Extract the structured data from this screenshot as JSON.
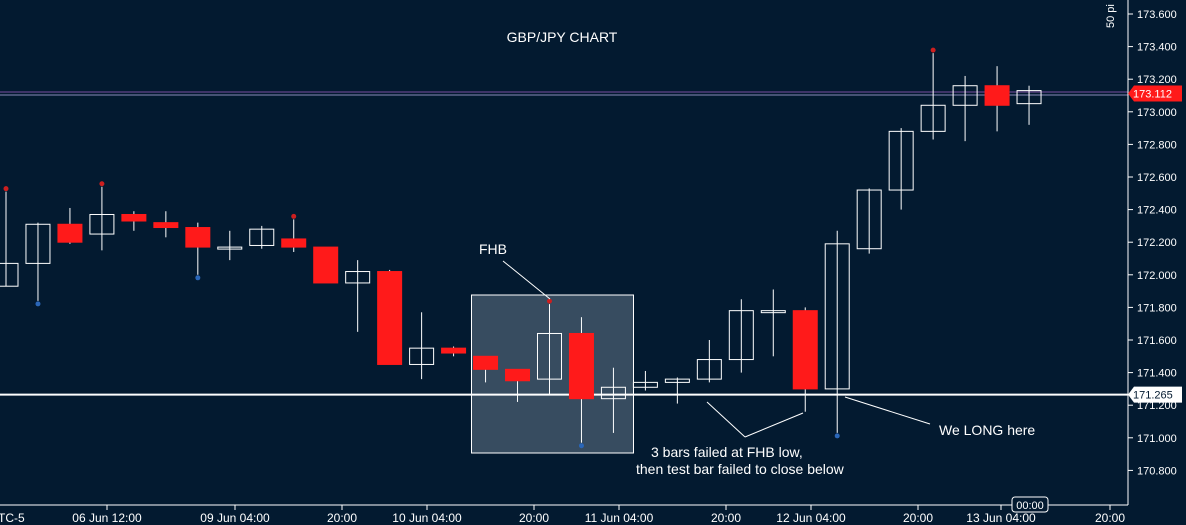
{
  "title": "GBP/JPY CHART",
  "timezone_label": "TC-5",
  "scale_label": "50 pi",
  "cursor_time": "00:00",
  "price_tags": {
    "current": "173.112",
    "support": "171.265"
  },
  "annotations": {
    "fhb": "FHB",
    "failed_line1": "3 bars failed at FHB low,",
    "failed_line2": "then test bar failed to close below",
    "long": "We LONG here"
  },
  "colors": {
    "background": "#031a30",
    "bull": "#ffffff",
    "bear": "#ff1a1a",
    "grid_text": "#ffffff",
    "support_line": "#ffffff",
    "price_line": "#7a4fa0",
    "price_tag": "#ff1a1a",
    "fractal_high": "#cc1f1f",
    "fractal_low": "#2a66b8",
    "box_fill": "#5a6e80"
  },
  "chart_data": {
    "type": "candlestick",
    "title": "GBP/JPY CHART",
    "y_axis": {
      "ticks": [
        "173.600",
        "173.400",
        "173.200",
        "173.000",
        "172.800",
        "172.600",
        "172.400",
        "172.200",
        "172.000",
        "171.800",
        "171.600",
        "171.400",
        "171.200",
        "171.000",
        "170.800"
      ],
      "range": [
        170.7,
        173.7
      ]
    },
    "x_axis": {
      "ticks": [
        "06 Jun 12:00",
        "09 Jun 04:00",
        "20:00",
        "10 Jun 04:00",
        "20:00",
        "11 Jun 04:00",
        "20:00",
        "12 Jun 04:00",
        "20:00",
        "13 Jun 04:00",
        "20:00"
      ]
    },
    "horizontal_lines": [
      {
        "price": 173.112,
        "label": "173.112"
      },
      {
        "price": 171.265,
        "label": "171.265"
      }
    ],
    "candles": [
      {
        "open": 171.93,
        "high": 172.51,
        "low": 171.93,
        "close": 172.07,
        "fractal": "high"
      },
      {
        "open": 172.07,
        "high": 172.32,
        "low": 171.84,
        "close": 172.31,
        "fractal": "low"
      },
      {
        "open": 172.31,
        "high": 172.41,
        "low": 172.19,
        "close": 172.2
      },
      {
        "open": 172.25,
        "high": 172.54,
        "low": 172.15,
        "close": 172.37,
        "fractal": "high"
      },
      {
        "open": 172.37,
        "high": 172.39,
        "low": 172.27,
        "close": 172.33
      },
      {
        "open": 172.32,
        "high": 172.39,
        "low": 172.23,
        "close": 172.29
      },
      {
        "open": 172.29,
        "high": 172.32,
        "low": 172.0,
        "close": 172.17,
        "fractal": "low"
      },
      {
        "open": 172.16,
        "high": 172.27,
        "low": 172.09,
        "close": 172.17
      },
      {
        "open": 172.18,
        "high": 172.3,
        "low": 172.16,
        "close": 172.28
      },
      {
        "open": 172.22,
        "high": 172.34,
        "low": 172.14,
        "close": 172.17,
        "fractal": "high"
      },
      {
        "open": 172.17,
        "high": 172.17,
        "low": 171.95,
        "close": 171.95
      },
      {
        "open": 171.95,
        "high": 172.09,
        "low": 171.65,
        "close": 172.02
      },
      {
        "open": 172.02,
        "high": 172.03,
        "low": 171.45,
        "close": 171.45
      },
      {
        "open": 171.45,
        "high": 171.77,
        "low": 171.36,
        "close": 171.55
      },
      {
        "open": 171.55,
        "high": 171.56,
        "low": 171.5,
        "close": 171.52
      },
      {
        "open": 171.5,
        "high": 171.5,
        "low": 171.34,
        "close": 171.42
      },
      {
        "open": 171.42,
        "high": 171.42,
        "low": 171.22,
        "close": 171.35
      },
      {
        "open": 171.36,
        "high": 171.82,
        "low": 171.26,
        "close": 171.64,
        "fractal": "high"
      },
      {
        "open": 171.64,
        "high": 171.74,
        "low": 170.97,
        "close": 171.24,
        "fractal": "low"
      },
      {
        "open": 171.24,
        "high": 171.43,
        "low": 171.03,
        "close": 171.31
      },
      {
        "open": 171.31,
        "high": 171.41,
        "low": 171.29,
        "close": 171.34
      },
      {
        "open": 171.34,
        "high": 171.37,
        "low": 171.21,
        "close": 171.36
      },
      {
        "open": 171.36,
        "high": 171.6,
        "low": 171.34,
        "close": 171.48
      },
      {
        "open": 171.48,
        "high": 171.85,
        "low": 171.4,
        "close": 171.78
      },
      {
        "open": 171.78,
        "high": 171.91,
        "low": 171.5,
        "close": 171.78
      },
      {
        "open": 171.78,
        "high": 171.8,
        "low": 171.16,
        "close": 171.3
      },
      {
        "open": 171.3,
        "high": 172.27,
        "low": 171.03,
        "close": 172.19,
        "fractal": "low"
      },
      {
        "open": 172.16,
        "high": 172.53,
        "low": 172.13,
        "close": 172.52
      },
      {
        "open": 172.52,
        "high": 172.9,
        "low": 172.4,
        "close": 172.88
      },
      {
        "open": 172.88,
        "high": 173.36,
        "low": 172.83,
        "close": 173.04,
        "fractal": "high"
      },
      {
        "open": 173.04,
        "high": 173.22,
        "low": 172.82,
        "close": 173.16
      },
      {
        "open": 173.16,
        "high": 173.28,
        "low": 172.88,
        "close": 173.04
      },
      {
        "open": 173.05,
        "high": 173.16,
        "low": 172.92,
        "close": 173.13
      }
    ]
  }
}
